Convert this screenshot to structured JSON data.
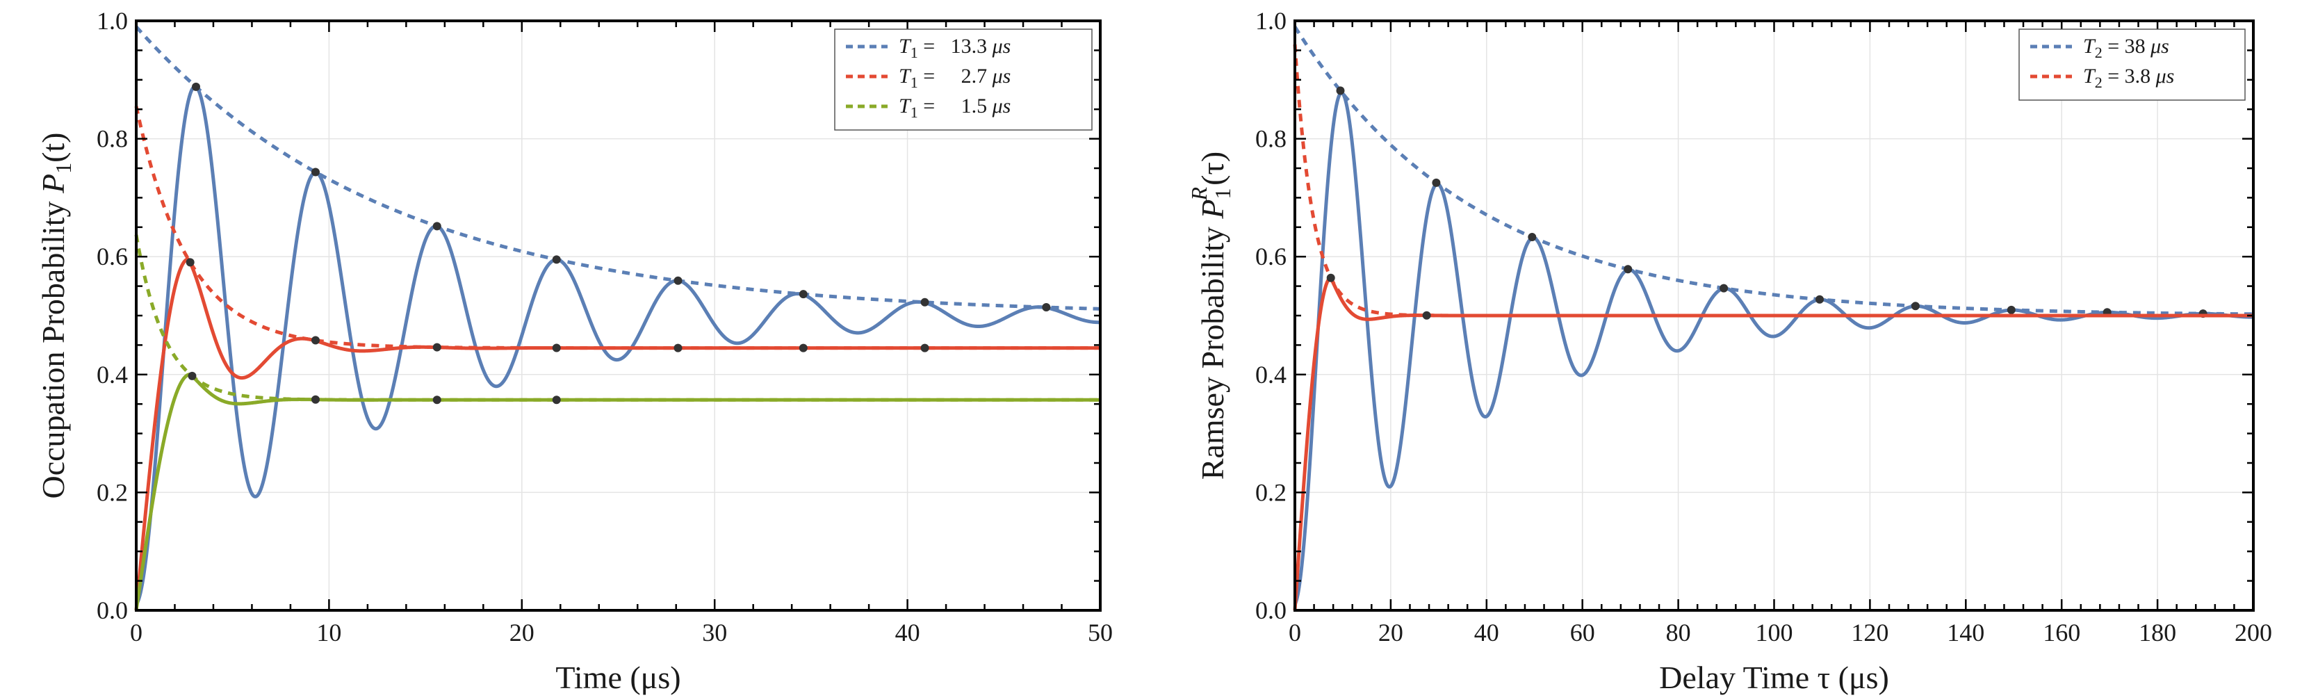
{
  "chart_data": [
    {
      "type": "line",
      "id": "t1",
      "xlabel": "Time (μs)",
      "ylabel_prefix": "Occupation Probability ",
      "ylabel_italic": "P",
      "ylabel_sub": "1",
      "ylabel_suffix": "(t)",
      "xlim": [
        0,
        50
      ],
      "ylim": [
        0,
        1
      ],
      "x_ticks": [
        0,
        10,
        20,
        30,
        40,
        50
      ],
      "x_tick_labels": [
        "0",
        "10",
        "20",
        "30",
        "40",
        "50"
      ],
      "y_ticks": [
        0,
        0.2,
        0.4,
        0.6,
        0.8,
        1.0
      ],
      "y_tick_labels": [
        "0.0",
        "0.2",
        "0.4",
        "0.6",
        "0.8",
        "1.0"
      ],
      "grid": true,
      "legend_position": "top-right",
      "series": [
        {
          "name": "T1 = 13.3 μs",
          "legend_sym": "T",
          "legend_sub": "1",
          "legend_value": " =   13.3 ",
          "legend_unit": "μs",
          "color": "#5b7fb5",
          "model": {
            "kind": "rabi",
            "T": 13.3,
            "a": 0.5,
            "b": 0.49,
            "period": 6.25,
            "t_peak": 3.08,
            "t_max": 50
          },
          "markers_x": [
            3.1,
            9.3,
            15.6,
            21.8,
            28.1,
            34.6,
            40.9,
            47.2
          ]
        },
        {
          "name": "T1 = 2.7 μs",
          "legend_sym": "T",
          "legend_sub": "1",
          "legend_value": " =     2.7 ",
          "legend_unit": "μs",
          "color": "#e34a33",
          "model": {
            "kind": "damped",
            "T": 2.7,
            "a": 0.445,
            "b": 0.41,
            "period": 6.25,
            "t_peak": 2.7,
            "t_max": 50
          },
          "markers_x": [
            2.8,
            9.3,
            15.6,
            21.8,
            28.1,
            34.6,
            40.9
          ]
        },
        {
          "name": "T1 = 1.5 μs",
          "legend_sym": "T",
          "legend_sub": "1",
          "legend_value": " =     1.5 ",
          "legend_unit": "μs",
          "color": "#8aaa28",
          "model": {
            "kind": "damped",
            "T": 1.5,
            "a": 0.357,
            "b": 0.28,
            "period": 6.25,
            "t_peak": 2.8,
            "t_max": 50
          },
          "markers_x": [
            2.9,
            9.3,
            15.6,
            21.8
          ]
        }
      ]
    },
    {
      "type": "line",
      "id": "t2",
      "xlabel": "Delay Time τ (μs)",
      "ylabel_prefix": "Ramsey Probability ",
      "ylabel_italic": "P",
      "ylabel_sub": "1",
      "ylabel_sup": "R",
      "ylabel_suffix": "(τ)",
      "xlim": [
        0,
        200
      ],
      "ylim": [
        0,
        1
      ],
      "x_ticks": [
        0,
        20,
        40,
        60,
        80,
        100,
        120,
        140,
        160,
        180,
        200
      ],
      "x_tick_labels": [
        "0",
        "20",
        "40",
        "60",
        "80",
        "100",
        "120",
        "140",
        "160",
        "180",
        "200"
      ],
      "y_ticks": [
        0,
        0.2,
        0.4,
        0.6,
        0.8,
        1.0
      ],
      "y_tick_labels": [
        "0.0",
        "0.2",
        "0.4",
        "0.6",
        "0.8",
        "1.0"
      ],
      "grid": true,
      "legend_position": "top-right",
      "series": [
        {
          "name": "T2 = 38 μs",
          "legend_sym": "T",
          "legend_sub": "2",
          "legend_value": " = 38 ",
          "legend_unit": "μs",
          "color": "#5b7fb5",
          "model": {
            "kind": "rabi",
            "T": 38,
            "a": 0.5,
            "b": 0.49,
            "period": 20,
            "t_peak": 9.5,
            "t_max": 200
          },
          "markers_x": [
            9.5,
            29.5,
            49.5,
            69.5,
            89.5,
            109.5,
            129.5,
            149.5,
            169.5,
            189.5
          ]
        },
        {
          "name": "T2 = 3.8 μs",
          "legend_sym": "T",
          "legend_sub": "2",
          "legend_value": " = 3.8 ",
          "legend_unit": "μs",
          "color": "#e34a33",
          "model": {
            "kind": "damped",
            "T": 3.8,
            "a": 0.5,
            "b": 0.46,
            "period": 20,
            "t_peak": 7.5,
            "t_max": 200
          },
          "markers_x": [
            7.5,
            27.5
          ]
        }
      ]
    }
  ]
}
